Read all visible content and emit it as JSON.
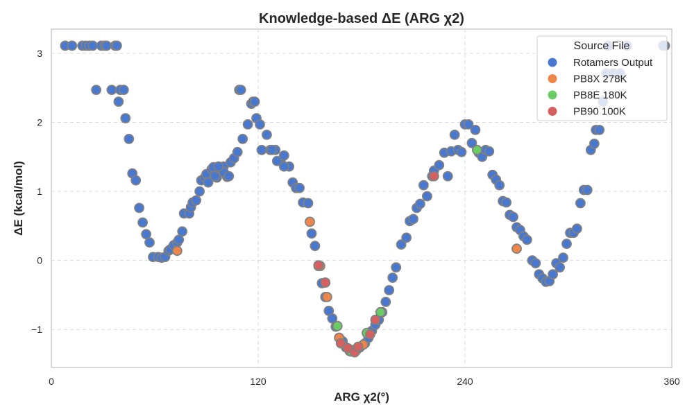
{
  "chart_data": {
    "type": "scatter",
    "title": "Knowledge-based ΔE (ARG χ2)",
    "xlabel": "ARG χ2(°)",
    "ylabel": "ΔE (kcal/mol)",
    "xlim": [
      0,
      360
    ],
    "ylim": [
      -1.55,
      3.35
    ],
    "xticks": [
      0,
      120,
      240,
      360
    ],
    "xtick_labels": [
      "0",
      "120",
      "240",
      "360"
    ],
    "yticks": [
      -1,
      0,
      1,
      2,
      3
    ],
    "ytick_labels": [
      "−1",
      "0",
      "1",
      "2",
      "3"
    ],
    "grid": true,
    "legend": {
      "title": "Source File",
      "placement": "top-right"
    },
    "series": [
      {
        "name": "Rotamers Output",
        "color": "#4878d0",
        "points": [
          [
            8,
            3.11
          ],
          [
            12,
            3.11
          ],
          [
            18,
            3.11
          ],
          [
            20,
            3.11
          ],
          [
            22,
            3.11
          ],
          [
            24,
            3.11
          ],
          [
            29,
            3.11
          ],
          [
            31,
            3.11
          ],
          [
            32,
            3.11
          ],
          [
            37,
            3.11
          ],
          [
            38,
            3.11
          ],
          [
            26,
            2.47
          ],
          [
            35,
            2.47
          ],
          [
            40,
            2.47
          ],
          [
            42,
            2.47
          ],
          [
            39,
            2.3
          ],
          [
            43,
            2.06
          ],
          [
            45,
            1.76
          ],
          [
            47,
            1.26
          ],
          [
            49,
            1.16
          ],
          [
            51,
            0.76
          ],
          [
            53,
            0.55
          ],
          [
            55,
            0.38
          ],
          [
            57,
            0.26
          ],
          [
            59,
            0.05
          ],
          [
            62,
            0.05
          ],
          [
            64,
            0.04
          ],
          [
            66,
            0.05
          ],
          [
            68,
            0.14
          ],
          [
            69,
            0.16
          ],
          [
            71,
            0.22
          ],
          [
            73,
            0.26
          ],
          [
            74,
            0.3
          ],
          [
            76,
            0.42
          ],
          [
            77,
            0.68
          ],
          [
            80,
            0.68
          ],
          [
            81,
            0.77
          ],
          [
            82,
            0.84
          ],
          [
            84,
            0.87
          ],
          [
            86,
            1.0
          ],
          [
            87,
            1.16
          ],
          [
            89,
            1.2
          ],
          [
            90,
            1.25
          ],
          [
            91,
            1.13
          ],
          [
            93,
            1.32
          ],
          [
            94,
            1.35
          ],
          [
            96,
            1.2
          ],
          [
            98,
            1.3
          ],
          [
            100,
            1.36
          ],
          [
            102,
            1.21
          ],
          [
            104,
            1.42
          ],
          [
            106,
            1.48
          ],
          [
            108,
            1.57
          ],
          [
            111,
            1.76
          ],
          [
            114,
            1.97
          ],
          [
            116,
            2.27
          ],
          [
            119,
            2.06
          ],
          [
            121,
            1.97
          ],
          [
            125,
            1.82
          ],
          [
            127,
            1.6
          ],
          [
            130,
            1.6
          ],
          [
            133,
            1.44
          ],
          [
            135,
            1.52
          ],
          [
            138,
            1.36
          ],
          [
            140,
            1.13
          ],
          [
            142,
            1.05
          ],
          [
            144,
            1.05
          ],
          [
            146,
            0.84
          ],
          [
            149,
            0.83
          ],
          [
            151,
            0.39
          ],
          [
            153,
            0.21
          ],
          [
            155,
            -0.08
          ],
          [
            157,
            -0.33
          ],
          [
            159,
            -0.53
          ],
          [
            161,
            -0.73
          ],
          [
            163,
            -0.84
          ],
          [
            165,
            -0.96
          ],
          [
            167,
            -1.12
          ],
          [
            169,
            -1.17
          ],
          [
            171,
            -1.26
          ],
          [
            173,
            -1.31
          ],
          [
            175,
            -1.31
          ],
          [
            177,
            -1.3
          ],
          [
            179,
            -1.26
          ],
          [
            182,
            -1.2
          ],
          [
            184,
            -1.12
          ],
          [
            186,
            -1.02
          ],
          [
            188,
            -0.93
          ],
          [
            190,
            -0.86
          ],
          [
            192,
            -0.75
          ],
          [
            194,
            -0.6
          ],
          [
            196,
            -0.43
          ],
          [
            198,
            -0.25
          ],
          [
            200,
            -0.1
          ],
          [
            203,
            0.23
          ],
          [
            206,
            0.33
          ],
          [
            208,
            0.57
          ],
          [
            210,
            0.6
          ],
          [
            212,
            0.76
          ],
          [
            214,
            0.82
          ],
          [
            216,
            1.09
          ],
          [
            218,
            0.93
          ],
          [
            221,
            1.22
          ],
          [
            222,
            1.3
          ],
          [
            225,
            1.38
          ],
          [
            228,
            1.56
          ],
          [
            230,
            1.22
          ],
          [
            232,
            1.58
          ],
          [
            234,
            1.82
          ],
          [
            236,
            1.6
          ],
          [
            238,
            1.57
          ],
          [
            240,
            1.97
          ],
          [
            242,
            1.97
          ],
          [
            244,
            1.7
          ],
          [
            246,
            1.89
          ],
          [
            248,
            1.56
          ],
          [
            250,
            1.5
          ],
          [
            252,
            1.6
          ],
          [
            254,
            1.58
          ],
          [
            256,
            1.24
          ],
          [
            258,
            1.17
          ],
          [
            260,
            1.09
          ],
          [
            262,
            0.86
          ],
          [
            264,
            0.84
          ],
          [
            266,
            0.66
          ],
          [
            268,
            0.63
          ],
          [
            270,
            0.48
          ],
          [
            272,
            0.44
          ],
          [
            274,
            0.35
          ],
          [
            276,
            0.3
          ],
          [
            279,
            0.0
          ],
          [
            281,
            -0.04
          ],
          [
            283,
            -0.2
          ],
          [
            285,
            -0.26
          ],
          [
            287,
            -0.31
          ],
          [
            289,
            -0.3
          ],
          [
            291,
            -0.2
          ],
          [
            293,
            -0.04
          ],
          [
            295,
            -0.1
          ],
          [
            297,
            0.04
          ],
          [
            299,
            0.24
          ],
          [
            301,
            0.4
          ],
          [
            303,
            0.4
          ],
          [
            305,
            0.46
          ],
          [
            307,
            0.83
          ],
          [
            309,
            1.02
          ],
          [
            311,
            1.02
          ],
          [
            313,
            1.6
          ],
          [
            315,
            1.69
          ],
          [
            316,
            1.89
          ],
          [
            318,
            1.89
          ],
          [
            320,
            2.3
          ],
          [
            322,
            2.71
          ],
          [
            323,
            3.11
          ],
          [
            326,
            2.71
          ],
          [
            330,
            2.71
          ],
          [
            334,
            3.11
          ],
          [
            356,
            3.11
          ],
          [
            355,
            3.11
          ],
          [
            109,
            2.47
          ],
          [
            110,
            2.47
          ],
          [
            117,
            2.3
          ],
          [
            118,
            2.3
          ],
          [
            122,
            1.6
          ],
          [
            128,
            1.6
          ],
          [
            131,
            1.44
          ],
          [
            135,
            1.36
          ],
          [
            100,
            1.28
          ],
          [
            103,
            1.22
          ],
          [
            97,
            1.36
          ],
          [
            95,
            1.22
          ]
        ]
      },
      {
        "name": "PB8X 278K",
        "color": "#ee854a",
        "points": [
          [
            73,
            0.14
          ],
          [
            150,
            0.56
          ],
          [
            156,
            -0.08
          ],
          [
            160,
            -0.53
          ],
          [
            167,
            -1.12
          ],
          [
            175,
            -1.3
          ],
          [
            181,
            -1.22
          ],
          [
            270,
            0.17
          ]
        ]
      },
      {
        "name": "PB8E 180K",
        "color": "#6acc64",
        "points": [
          [
            166,
            -0.95
          ],
          [
            174,
            -1.32
          ],
          [
            183,
            -1.05
          ],
          [
            191,
            -0.75
          ],
          [
            247,
            1.6
          ]
        ]
      },
      {
        "name": "PB90 100K",
        "color": "#d65f5f",
        "points": [
          [
            155,
            -0.07
          ],
          [
            159,
            -0.32
          ],
          [
            168,
            -1.2
          ],
          [
            172,
            -1.27
          ],
          [
            176,
            -1.33
          ],
          [
            178,
            -1.25
          ],
          [
            185,
            -1.07
          ],
          [
            188,
            -0.86
          ],
          [
            222,
            1.22
          ]
        ]
      }
    ]
  }
}
